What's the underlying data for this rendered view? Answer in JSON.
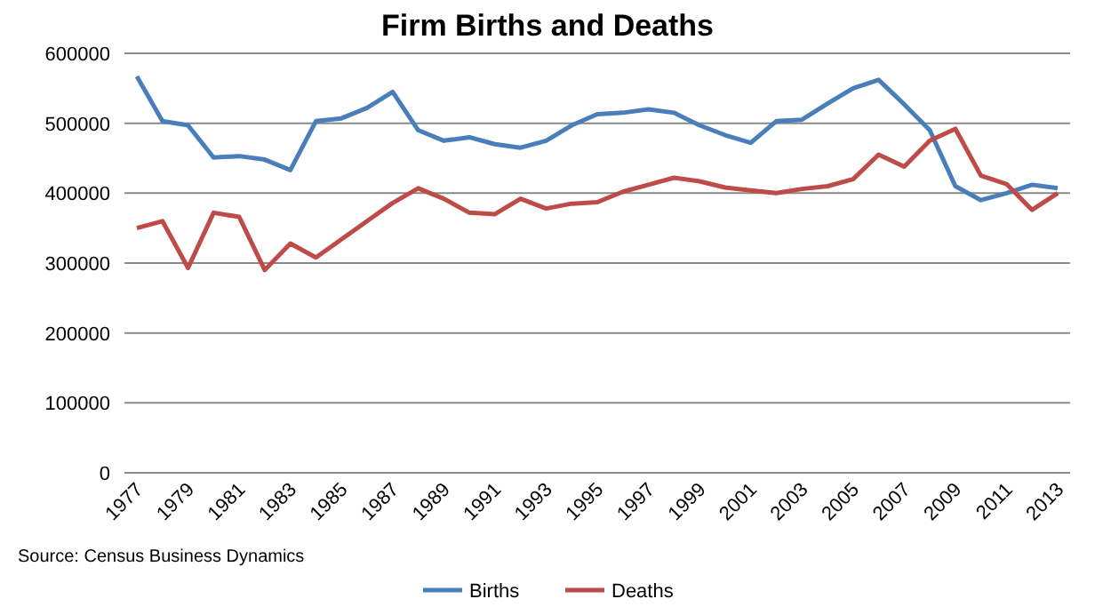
{
  "chart_data": {
    "type": "line",
    "title": "Firm Births and Deaths",
    "categories": [
      "1977",
      null,
      "1979",
      null,
      "1981",
      null,
      "1983",
      null,
      "1985",
      null,
      "1987",
      null,
      "1989",
      null,
      "1991",
      null,
      "1993",
      null,
      "1995",
      null,
      "1997",
      null,
      "1999",
      null,
      "2001",
      null,
      "2003",
      null,
      "2005",
      null,
      "2007",
      null,
      "2009",
      null,
      "2011",
      null,
      "2013"
    ],
    "series": [
      {
        "name": "Births",
        "color": "#4a7ebb",
        "values": [
          567000,
          503000,
          497000,
          451000,
          453000,
          448000,
          433000,
          503000,
          507000,
          522000,
          545000,
          490000,
          475000,
          480000,
          470000,
          465000,
          475000,
          497000,
          513000,
          515000,
          520000,
          515000,
          497000,
          483000,
          472000,
          503000,
          505000,
          528000,
          550000,
          562000,
          527000,
          490000,
          410000,
          390000,
          400000,
          412000,
          407000
        ]
      },
      {
        "name": "Deaths",
        "color": "#be4b48",
        "values": [
          350000,
          360000,
          293000,
          372000,
          366000,
          290000,
          328000,
          308000,
          334000,
          360000,
          386000,
          407000,
          392000,
          372000,
          370000,
          392000,
          378000,
          385000,
          387000,
          402000,
          412000,
          422000,
          417000,
          408000,
          404000,
          400000,
          406000,
          410000,
          420000,
          455000,
          438000,
          475000,
          492000,
          425000,
          413000,
          376000,
          400000
        ]
      }
    ],
    "ylim": [
      0,
      600000
    ],
    "yticks": [
      0,
      100000,
      200000,
      300000,
      400000,
      500000,
      600000
    ],
    "grid": "y",
    "legend": "bottom",
    "line_style": "solid",
    "marker": "none",
    "annotations": [
      "Source: Census Business Dynamics"
    ]
  }
}
